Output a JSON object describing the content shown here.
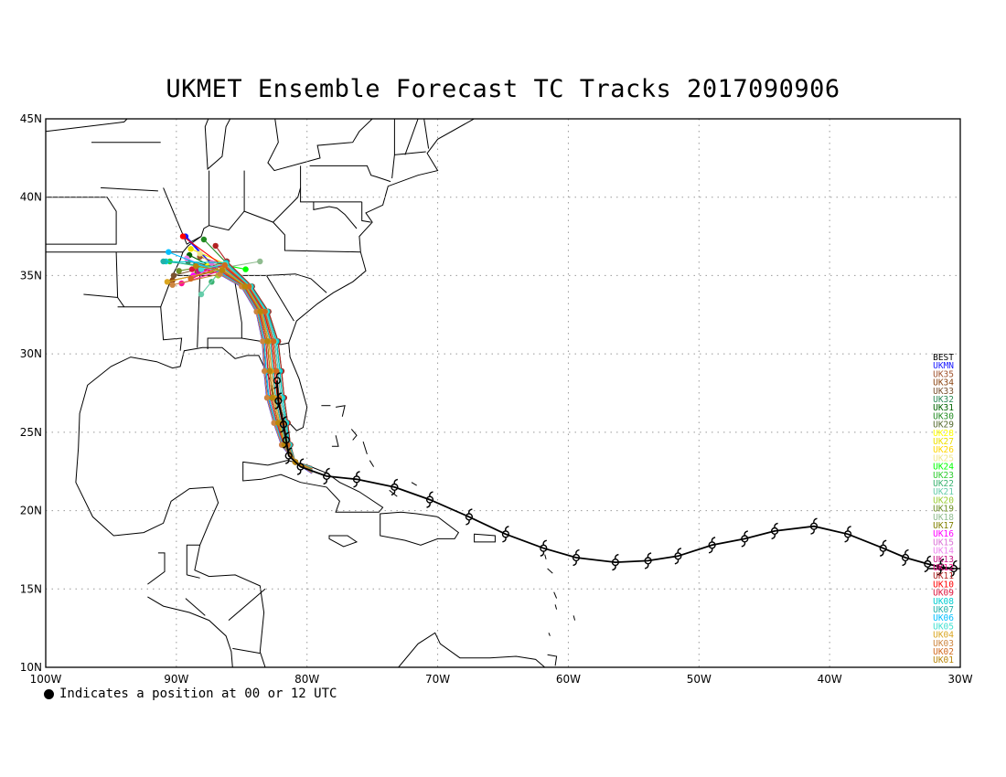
{
  "title": "UKMET Ensemble Forecast TC Tracks 2017090906",
  "footnote": "Indicates a position at 00 or 12 UTC",
  "map": {
    "lon_range": [
      -100,
      -30
    ],
    "lat_range": [
      10,
      45
    ],
    "lat_ticks": [
      "10N",
      "15N",
      "20N",
      "25N",
      "30N",
      "35N",
      "40N",
      "45N"
    ],
    "lon_ticks": [
      "100W",
      "90W",
      "80W",
      "70W",
      "60W",
      "50W",
      "40W",
      "30W"
    ],
    "grid": "dotted"
  },
  "best_track": {
    "label": "BEST",
    "color": "#000000",
    "symbol": "hurricane",
    "points": [
      [
        -30.5,
        16.3
      ],
      [
        -31.5,
        16.4
      ],
      [
        -32.5,
        16.6
      ],
      [
        -34.2,
        17.0
      ],
      [
        -35.9,
        17.6
      ],
      [
        -38.6,
        18.5
      ],
      [
        -41.2,
        19.0
      ],
      [
        -44.2,
        18.7
      ],
      [
        -46.5,
        18.2
      ],
      [
        -49.0,
        17.8
      ],
      [
        -51.6,
        17.1
      ],
      [
        -53.9,
        16.8
      ],
      [
        -56.4,
        16.7
      ],
      [
        -59.4,
        17.0
      ],
      [
        -61.9,
        17.6
      ],
      [
        -64.8,
        18.5
      ],
      [
        -67.6,
        19.6
      ],
      [
        -70.6,
        20.7
      ],
      [
        -73.3,
        21.5
      ],
      [
        -76.2,
        22.0
      ],
      [
        -78.5,
        22.2
      ],
      [
        -80.5,
        22.8
      ],
      [
        -81.4,
        23.5
      ],
      [
        -81.6,
        24.5
      ],
      [
        -81.8,
        25.5
      ],
      [
        -82.2,
        27.0
      ],
      [
        -82.3,
        28.3
      ]
    ]
  },
  "ensemble_tracks": [
    {
      "label": "UKMN",
      "color": "#1a1aff"
    },
    {
      "label": "UK35",
      "color": "#a0522d"
    },
    {
      "label": "UK34",
      "color": "#8b4513"
    },
    {
      "label": "UK33",
      "color": "#7a5230"
    },
    {
      "label": "UK32",
      "color": "#2e8b57"
    },
    {
      "label": "UK31",
      "color": "#006400"
    },
    {
      "label": "UK30",
      "color": "#228b22"
    },
    {
      "label": "UK29",
      "color": "#556b2f"
    },
    {
      "label": "UK28",
      "color": "#ffff00"
    },
    {
      "label": "UK27",
      "color": "#eee000"
    },
    {
      "label": "UK26",
      "color": "#ffd700"
    },
    {
      "label": "UK25",
      "color": "#f0e68c"
    },
    {
      "label": "UK24",
      "color": "#00ff00"
    },
    {
      "label": "UK23",
      "color": "#32cd32"
    },
    {
      "label": "UK22",
      "color": "#3cb371"
    },
    {
      "label": "UK21",
      "color": "#66cdaa"
    },
    {
      "label": "UK20",
      "color": "#9acd32"
    },
    {
      "label": "UK19",
      "color": "#6b8e23"
    },
    {
      "label": "UK18",
      "color": "#8fbc8f"
    },
    {
      "label": "UK17",
      "color": "#808000"
    },
    {
      "label": "UK16",
      "color": "#ff00ff"
    },
    {
      "label": "UK15",
      "color": "#da70d6"
    },
    {
      "label": "UK14",
      "color": "#ee82ee"
    },
    {
      "label": "UK13",
      "color": "#c71585"
    },
    {
      "label": "UK12",
      "color": "#ff1493"
    },
    {
      "label": "UK11",
      "color": "#b22222"
    },
    {
      "label": "UK10",
      "color": "#ff0000"
    },
    {
      "label": "UK09",
      "color": "#dc143c"
    },
    {
      "label": "UK08",
      "color": "#00ced1"
    },
    {
      "label": "UK07",
      "color": "#20b2aa"
    },
    {
      "label": "UK06",
      "color": "#00bfff"
    },
    {
      "label": "UK05",
      "color": "#40e0d0"
    },
    {
      "label": "UK04",
      "color": "#daa520"
    },
    {
      "label": "UK03",
      "color": "#cd853f"
    },
    {
      "label": "UK02",
      "color": "#d2691e"
    },
    {
      "label": "UK01",
      "color": "#b8860b"
    }
  ]
}
